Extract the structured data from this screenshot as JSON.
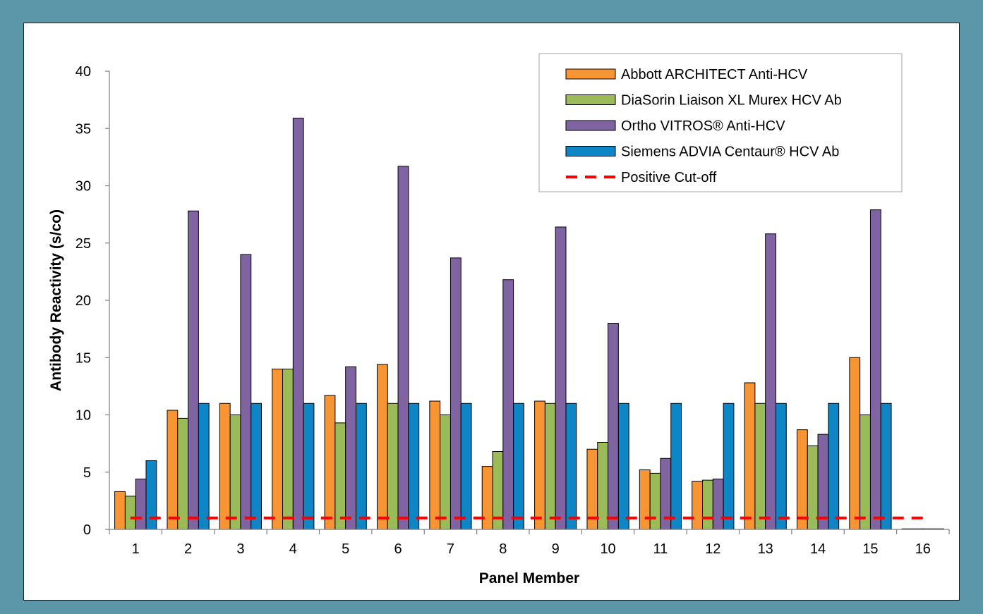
{
  "chart_data": {
    "type": "bar",
    "title": "",
    "xlabel": "Panel Member",
    "ylabel": "Antibody Reactivity (s/co)",
    "ylim": [
      0,
      40
    ],
    "yticks": [
      0,
      5,
      10,
      15,
      20,
      25,
      30,
      35,
      40
    ],
    "grid": false,
    "legend_position": "top-right",
    "categories": [
      "1",
      "2",
      "3",
      "4",
      "5",
      "6",
      "7",
      "8",
      "9",
      "10",
      "11",
      "12",
      "13",
      "14",
      "15",
      "16"
    ],
    "series": [
      {
        "name": "Abbott ARCHITECT Anti-HCV",
        "color": "#f79433",
        "values": [
          3.3,
          10.4,
          11.0,
          14.0,
          11.7,
          14.4,
          11.2,
          5.5,
          11.2,
          7.0,
          5.2,
          4.2,
          12.8,
          8.7,
          15.0,
          0.05
        ]
      },
      {
        "name": "DiaSorin Liaison XL Murex HCV Ab",
        "color": "#9bbb59",
        "values": [
          2.9,
          9.7,
          10.0,
          14.0,
          9.3,
          11.0,
          10.0,
          6.8,
          11.0,
          7.6,
          4.9,
          4.3,
          11.0,
          7.3,
          10.0,
          0.05
        ]
      },
      {
        "name": "Ortho VITROS® Anti-HCV",
        "color": "#8064a2",
        "values": [
          4.4,
          27.8,
          24.0,
          35.9,
          14.2,
          31.7,
          23.7,
          21.8,
          26.4,
          18.0,
          6.2,
          4.4,
          25.8,
          8.3,
          27.9,
          0.05
        ]
      },
      {
        "name": "Siemens ADVIA Centaur® HCV Ab",
        "color": "#0e86c6",
        "values": [
          6.0,
          11.0,
          11.0,
          11.0,
          11.0,
          11.0,
          11.0,
          11.0,
          11.0,
          11.0,
          11.0,
          11.0,
          11.0,
          11.0,
          11.0,
          0.05
        ]
      }
    ],
    "cutoff": {
      "name": "Positive Cut-off",
      "value": 1.0,
      "color": "#ff0000",
      "style": "dashed"
    }
  }
}
